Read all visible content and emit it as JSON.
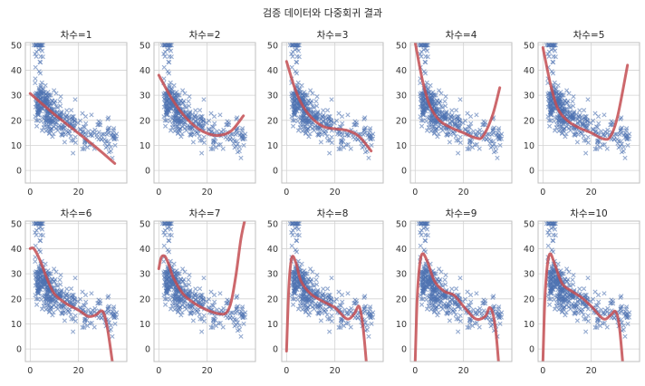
{
  "suptitle": "검증 데이터와 다중회귀 결과",
  "colors": {
    "scatter": "#4c72b0",
    "curve": "#c44e52",
    "grid": "#d3d3d3",
    "axes": "#bfbfbf"
  },
  "chart_data": [
    {
      "type": "scatter",
      "title": "차수=1",
      "xlim": [
        -2,
        40
      ],
      "ylim": [
        -5,
        51
      ],
      "xticks": [
        0,
        20
      ],
      "yticks": [
        0,
        10,
        20,
        30,
        40,
        50
      ],
      "grid": true,
      "marker": "x",
      "fit_line": {
        "x": [
          0,
          5,
          10,
          15,
          20,
          25,
          30,
          35
        ],
        "y": [
          30.7,
          26.5,
          22.4,
          18.6,
          14.8,
          11.0,
          7.0,
          2.8
        ]
      }
    },
    {
      "type": "scatter",
      "title": "차수=2",
      "xlim": [
        -2,
        40
      ],
      "ylim": [
        -5,
        51
      ],
      "xticks": [
        0,
        20
      ],
      "yticks": [
        0,
        10,
        20,
        30,
        40,
        50
      ],
      "grid": true,
      "marker": "x",
      "fit_line": {
        "x": [
          0,
          5,
          10,
          15,
          20,
          25,
          30,
          35
        ],
        "y": [
          38.0,
          29.2,
          22.4,
          17.6,
          14.8,
          14.0,
          15.8,
          21.8
        ]
      }
    },
    {
      "type": "scatter",
      "title": "차수=3",
      "xlim": [
        -2,
        40
      ],
      "ylim": [
        -5,
        51
      ],
      "xticks": [
        0,
        20
      ],
      "yticks": [
        0,
        10,
        20,
        30,
        40,
        50
      ],
      "grid": true,
      "marker": "x",
      "fit_line": {
        "x": [
          0,
          3,
          6,
          10,
          15,
          20,
          25,
          30,
          35
        ],
        "y": [
          43.5,
          34.0,
          27.0,
          21.4,
          17.6,
          16.6,
          16.0,
          13.6,
          7.8
        ]
      }
    },
    {
      "type": "scatter",
      "title": "차수=4",
      "xlim": [
        -2,
        40
      ],
      "ylim": [
        -5,
        51
      ],
      "xticks": [
        0,
        20
      ],
      "yticks": [
        0,
        10,
        20,
        30,
        40,
        50
      ],
      "grid": true,
      "marker": "x",
      "fit_line": {
        "x": [
          0,
          3,
          6,
          10,
          15,
          20,
          25,
          28,
          32,
          35
        ],
        "y": [
          51,
          36.0,
          26.0,
          20.0,
          17.0,
          15.0,
          13.0,
          13.6,
          22.0,
          33.0
        ]
      }
    },
    {
      "type": "scatter",
      "title": "차수=5",
      "xlim": [
        -2,
        40
      ],
      "ylim": [
        -5,
        51
      ],
      "xticks": [
        0,
        20
      ],
      "yticks": [
        0,
        10,
        20,
        30,
        40,
        50
      ],
      "grid": true,
      "marker": "x",
      "fit_line": {
        "x": [
          0,
          3,
          6,
          10,
          15,
          20,
          25,
          28,
          31,
          35
        ],
        "y": [
          49.0,
          35.0,
          25.0,
          20.0,
          17.0,
          15.0,
          12.6,
          13.6,
          22.0,
          42.0
        ]
      }
    },
    {
      "type": "scatter",
      "title": "차수=6",
      "xlim": [
        -2,
        40
      ],
      "ylim": [
        -5,
        51
      ],
      "xticks": [
        0,
        20
      ],
      "yticks": [
        0,
        10,
        20,
        30,
        40,
        50
      ],
      "grid": true,
      "marker": "x",
      "fit_line": {
        "x": [
          0,
          1.5,
          4,
          7,
          10,
          15,
          20,
          24,
          27,
          30,
          32,
          34
        ],
        "y": [
          40,
          40,
          35.5,
          28.0,
          22.0,
          18.0,
          15.5,
          13.0,
          13.5,
          15.0,
          8.0,
          -5
        ]
      }
    },
    {
      "type": "scatter",
      "title": "차수=7",
      "xlim": [
        -2,
        40
      ],
      "ylim": [
        -5,
        51
      ],
      "xticks": [
        0,
        20
      ],
      "yticks": [
        0,
        10,
        20,
        30,
        40,
        50
      ],
      "grid": true,
      "marker": "x",
      "fit_line": {
        "x": [
          0,
          1,
          2.5,
          4,
          6,
          10,
          15,
          20,
          25,
          28,
          30,
          32,
          34,
          35.5
        ],
        "y": [
          32.0,
          36.5,
          37.0,
          34.0,
          28.5,
          22.0,
          18.0,
          15.5,
          14.0,
          14.5,
          19.0,
          30.0,
          44.0,
          51
        ]
      }
    },
    {
      "type": "scatter",
      "title": "차수=8",
      "xlim": [
        -2,
        40
      ],
      "ylim": [
        -5,
        51
      ],
      "xticks": [
        0,
        20
      ],
      "yticks": [
        0,
        10,
        20,
        30,
        40,
        50
      ],
      "grid": true,
      "marker": "x",
      "fit_line": {
        "x": [
          0,
          0.8,
          1.6,
          2.5,
          4,
          6,
          10,
          15,
          20,
          25,
          28,
          30,
          31.5,
          33
        ],
        "y": [
          -0.8,
          22.0,
          33.0,
          37.0,
          34.0,
          27.0,
          22.0,
          19.0,
          16.5,
          12.0,
          14.0,
          17.0,
          10.0,
          -5
        ]
      }
    },
    {
      "type": "scatter",
      "title": "차수=9",
      "xlim": [
        -2,
        40
      ],
      "ylim": [
        -5,
        51
      ],
      "xticks": [
        0,
        20
      ],
      "yticks": [
        0,
        10,
        20,
        30,
        40,
        50
      ],
      "grid": true,
      "marker": "x",
      "fit_line": {
        "x": [
          0,
          0.8,
          1.8,
          3,
          5,
          8,
          12,
          16,
          20,
          25,
          29,
          31,
          33,
          34.5
        ],
        "y": [
          -5,
          20.0,
          33.0,
          38.0,
          35.0,
          27.0,
          23.0,
          21.5,
          17.0,
          12.0,
          13.0,
          16.5,
          10.0,
          -5
        ]
      }
    },
    {
      "type": "scatter",
      "title": "차수=10",
      "xlim": [
        -2,
        40
      ],
      "ylim": [
        -5,
        51
      ],
      "xticks": [
        0,
        20
      ],
      "yticks": [
        0,
        10,
        20,
        30,
        40,
        50
      ],
      "grid": true,
      "marker": "x",
      "fit_line": {
        "x": [
          0,
          0.8,
          1.8,
          3,
          5,
          8,
          12,
          16,
          20,
          25,
          28,
          30,
          31.5,
          33
        ],
        "y": [
          -5,
          20.0,
          33.0,
          38.0,
          33.5,
          26.0,
          23.0,
          20.5,
          17.0,
          12.0,
          13.5,
          15.0,
          10.0,
          -5
        ]
      }
    }
  ]
}
